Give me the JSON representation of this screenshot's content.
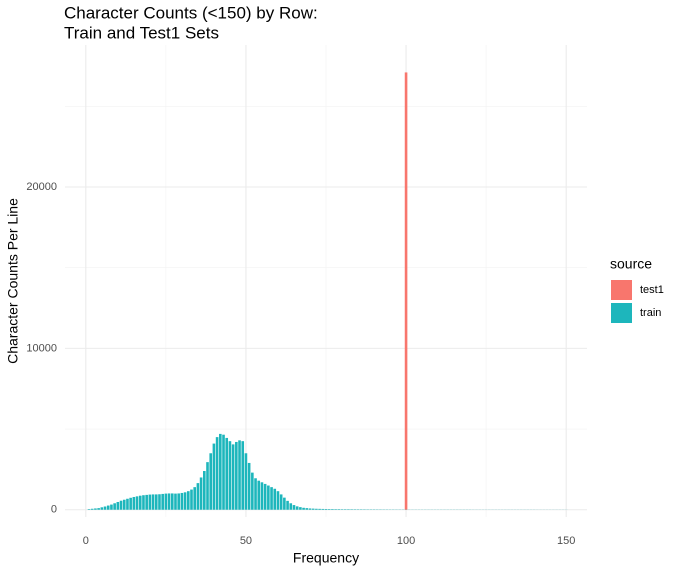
{
  "chart_data": {
    "type": "bar",
    "title": [
      "Character Counts (<150) by Row:",
      "Train and Test1 Sets"
    ],
    "x_label": "Frequency",
    "y_label": "Character Counts Per Line",
    "legend_title": "source",
    "legend": "right",
    "xlim": [
      -6.5,
      156.5
    ],
    "ylim": [
      -450,
      28800
    ],
    "xticks": [
      0,
      50,
      100,
      150
    ],
    "yticks": [
      0,
      10000,
      20000
    ],
    "x_minor_ticks": [
      25,
      75,
      125
    ],
    "y_minor_ticks": [
      5000,
      15000,
      25000
    ],
    "grid": true,
    "series": [
      {
        "name": "test1",
        "color": "#F8766D",
        "x": [
          100
        ],
        "values": [
          27100
        ]
      },
      {
        "name": "train",
        "color": "#1DB6BC",
        "x": [
          1,
          2,
          3,
          4,
          5,
          6,
          7,
          8,
          9,
          10,
          11,
          12,
          13,
          14,
          15,
          16,
          17,
          18,
          19,
          20,
          21,
          22,
          23,
          24,
          25,
          26,
          27,
          28,
          29,
          30,
          31,
          32,
          33,
          34,
          35,
          36,
          37,
          38,
          39,
          40,
          41,
          42,
          43,
          44,
          45,
          46,
          47,
          48,
          49,
          50,
          51,
          52,
          53,
          54,
          55,
          56,
          57,
          58,
          59,
          60,
          61,
          62,
          63,
          64,
          65,
          66,
          67,
          68,
          69,
          70,
          71,
          72,
          73,
          74,
          75,
          76,
          77,
          78,
          79,
          80,
          81,
          82,
          83,
          84,
          85,
          86,
          87,
          88,
          89,
          90,
          91,
          92,
          93,
          94,
          95,
          96,
          97,
          98,
          99,
          100,
          101,
          102,
          103,
          104,
          105,
          106,
          107,
          108,
          109,
          110,
          111,
          112,
          113,
          114,
          115,
          116,
          117,
          118,
          119,
          120,
          121,
          122,
          123,
          124,
          125,
          126,
          127,
          128,
          129,
          130,
          131,
          132,
          133,
          134,
          135,
          136,
          137,
          138,
          139,
          140,
          141,
          142,
          143,
          144,
          145,
          146,
          147,
          148,
          149,
          150
        ],
        "values": [
          40,
          60,
          80,
          100,
          150,
          200,
          260,
          320,
          400,
          480,
          560,
          620,
          680,
          740,
          790,
          830,
          870,
          900,
          920,
          940,
          950,
          950,
          960,
          980,
          1000,
          1010,
          1010,
          1000,
          1010,
          1040,
          1080,
          1150,
          1250,
          1400,
          1650,
          2000,
          2400,
          2950,
          3500,
          4100,
          4500,
          4700,
          4650,
          4450,
          4250,
          4050,
          4200,
          4300,
          4250,
          3500,
          2900,
          2300,
          1950,
          1800,
          1700,
          1600,
          1500,
          1400,
          1300,
          1150,
          950,
          750,
          550,
          400,
          290,
          210,
          160,
          120,
          100,
          80,
          70,
          60,
          55,
          50,
          45,
          40,
          40,
          35,
          35,
          30,
          30,
          30,
          28,
          26,
          25,
          24,
          22,
          20,
          20,
          20,
          18,
          18,
          16,
          16,
          15,
          15,
          14,
          14,
          13,
          12,
          10,
          10,
          10,
          10,
          10,
          10,
          10,
          10,
          10,
          10,
          10,
          10,
          10,
          10,
          10,
          10,
          10,
          10,
          10,
          10,
          8,
          8,
          8,
          8,
          8,
          8,
          8,
          8,
          8,
          8,
          8,
          8,
          8,
          8,
          8,
          8,
          8,
          8,
          8,
          8,
          6,
          6,
          6,
          6,
          6,
          6,
          6,
          6,
          6,
          6
        ]
      }
    ]
  }
}
